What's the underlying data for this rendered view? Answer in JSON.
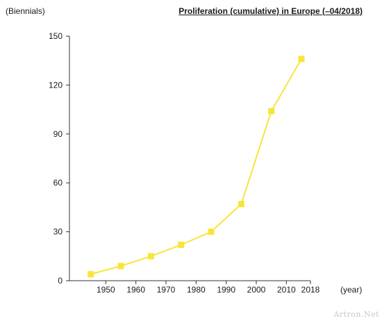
{
  "chart_data": {
    "type": "line",
    "title": "Proliferation (cumulative) in Europe (–04/2018)",
    "ylabel": "(Biennials)",
    "xlabel": "(year)",
    "ylim": [
      0,
      150
    ],
    "yticks": [
      0,
      30,
      60,
      90,
      120,
      150
    ],
    "xlim": [
      1940,
      2018
    ],
    "xticks": [
      1950,
      1960,
      1970,
      1980,
      1990,
      2000,
      2010,
      2018
    ],
    "grid": false,
    "legend": "none",
    "color": "#f7e53a",
    "series": [
      {
        "x": [
          1945,
          1955,
          1965,
          1975,
          1985,
          1995,
          2005,
          2015
        ],
        "values": [
          4,
          9,
          15,
          22,
          30,
          47,
          104,
          136
        ]
      }
    ]
  },
  "watermark": "Artron.Net"
}
